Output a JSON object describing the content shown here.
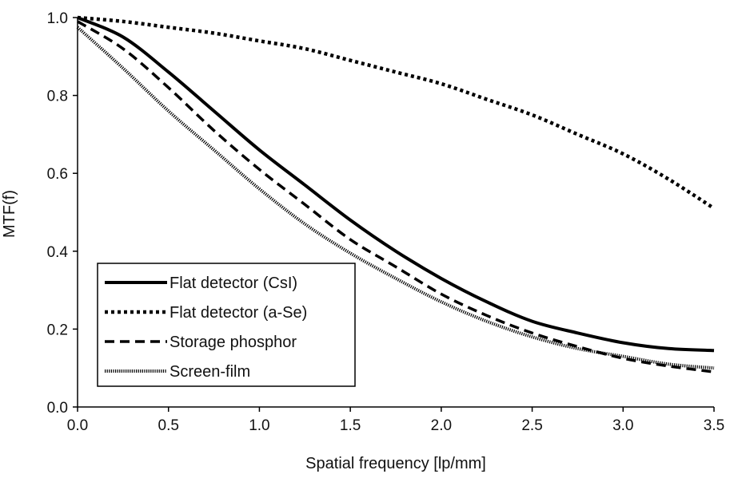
{
  "chart_data": {
    "type": "line",
    "xlabel": "Spatial frequency [lp/mm]",
    "ylabel": "MTF(f)",
    "xlim": [
      0,
      3.5
    ],
    "ylim": [
      0,
      1.0
    ],
    "x_ticks": [
      "0.0",
      "0.5",
      "1.0",
      "1.5",
      "2.0",
      "2.5",
      "3.0",
      "3.5"
    ],
    "y_ticks": [
      "0.0",
      "0.2",
      "0.4",
      "0.6",
      "0.8",
      "1.0"
    ],
    "grid": false,
    "legend_position": "bottom-left",
    "x": [
      0.0,
      0.25,
      0.5,
      0.75,
      1.0,
      1.25,
      1.5,
      1.75,
      2.0,
      2.25,
      2.5,
      2.75,
      3.0,
      3.25,
      3.5
    ],
    "series": [
      {
        "name": "Flat detector (CsI)",
        "style": "solid",
        "color": "#000000",
        "values": [
          1.0,
          0.95,
          0.86,
          0.76,
          0.66,
          0.57,
          0.48,
          0.4,
          0.33,
          0.27,
          0.22,
          0.19,
          0.165,
          0.15,
          0.145
        ]
      },
      {
        "name": "Flat detector (a-Se)",
        "style": "dotted",
        "color": "#000000",
        "values": [
          1.0,
          0.99,
          0.975,
          0.96,
          0.94,
          0.92,
          0.89,
          0.86,
          0.83,
          0.79,
          0.75,
          0.7,
          0.65,
          0.585,
          0.51
        ]
      },
      {
        "name": "Storage phosphor",
        "style": "dashed",
        "color": "#000000",
        "values": [
          0.99,
          0.92,
          0.82,
          0.71,
          0.61,
          0.52,
          0.43,
          0.36,
          0.29,
          0.235,
          0.19,
          0.155,
          0.125,
          0.105,
          0.09
        ]
      },
      {
        "name": "Screen-film",
        "style": "fine-dotted",
        "color": "#000000",
        "values": [
          0.975,
          0.87,
          0.76,
          0.66,
          0.56,
          0.47,
          0.395,
          0.33,
          0.27,
          0.22,
          0.18,
          0.15,
          0.13,
          0.11,
          0.1
        ]
      }
    ]
  }
}
